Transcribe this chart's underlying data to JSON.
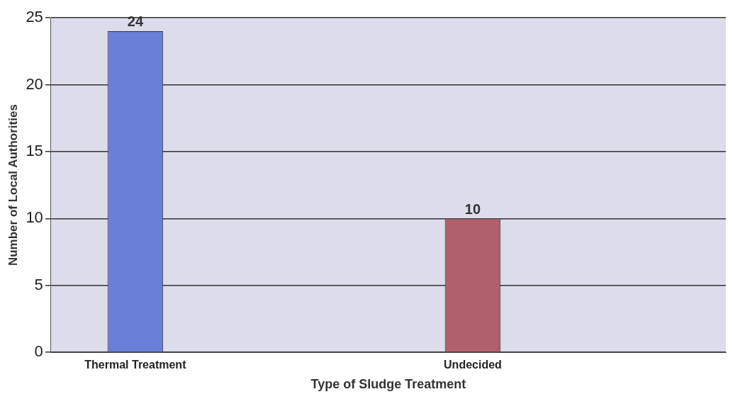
{
  "chart_data": {
    "type": "bar",
    "xlabel": "Type of Sludge Treatment",
    "ylabel": "Number of Local Authorities",
    "categories": [
      "Thermal Treatment",
      null,
      "Undecided",
      null
    ],
    "values": [
      24,
      0,
      10,
      0
    ],
    "colors": [
      "#6a7fd8",
      "#6a7fd8",
      "#b0606c",
      "#b0606c"
    ],
    "ylim": [
      0,
      25
    ],
    "yticks": [
      0,
      5,
      10,
      15,
      20,
      25
    ],
    "value_labels": [
      "24",
      null,
      "10",
      null
    ],
    "grid": "y",
    "legend": false
  }
}
